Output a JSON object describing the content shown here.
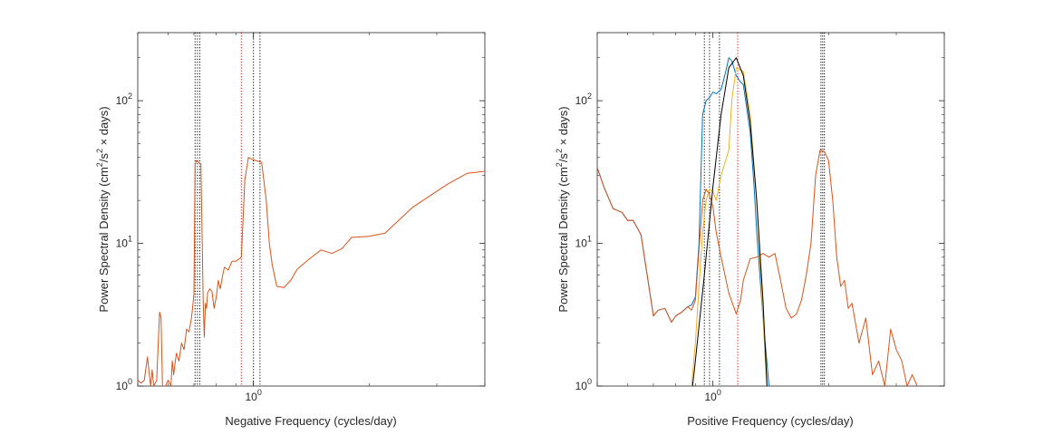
{
  "chart_data": [
    {
      "type": "line",
      "xlabel": "Negative Frequency (cycles/day)",
      "ylabel_parts": [
        "Power Spectral Density (cm",
        "2",
        "/s",
        "2",
        " × days)"
      ],
      "xscale": "log",
      "yscale": "log",
      "xlim": [
        0.5,
        4.0
      ],
      "ylim": [
        1,
        300
      ],
      "xticks": [
        {
          "value": 1,
          "base": "10",
          "exp": "0"
        }
      ],
      "yticks": [
        {
          "value": 1,
          "base": "10",
          "exp": "0"
        },
        {
          "value": 10,
          "base": "10",
          "exp": "1"
        },
        {
          "value": 100,
          "base": "10",
          "exp": "2"
        }
      ],
      "vlines": [
        {
          "x": 0.705,
          "color": "#000000"
        },
        {
          "x": 0.715,
          "color": "#000000"
        },
        {
          "x": 0.725,
          "color": "#000000"
        },
        {
          "x": 0.93,
          "color": "#ff0000"
        },
        {
          "x": 1.0,
          "color": "#000000"
        },
        {
          "x": 1.04,
          "color": "#000000"
        }
      ],
      "series": [
        {
          "color": "#d95319",
          "x": [
            0.5,
            0.51,
            0.52,
            0.53,
            0.54,
            0.545,
            0.55,
            0.56,
            0.57,
            0.575,
            0.58,
            0.59,
            0.6,
            0.61,
            0.615,
            0.62,
            0.63,
            0.64,
            0.65,
            0.66,
            0.67,
            0.68,
            0.69,
            0.7,
            0.705,
            0.71,
            0.72,
            0.73,
            0.74,
            0.745,
            0.75,
            0.755,
            0.76,
            0.77,
            0.78,
            0.79,
            0.8,
            0.81,
            0.82,
            0.83,
            0.84,
            0.86,
            0.88,
            0.9,
            0.93,
            0.95,
            0.97,
            1.0,
            1.05,
            1.08,
            1.1,
            1.12,
            1.15,
            1.2,
            1.25,
            1.3,
            1.4,
            1.5,
            1.6,
            1.7,
            1.8,
            2.0,
            2.2,
            2.6,
            3.2,
            3.6,
            4.0
          ],
          "y": [
            1.1,
            1.05,
            1.1,
            1.6,
            1.0,
            1.3,
            1.0,
            1.1,
            3.3,
            3.0,
            1.0,
            1.0,
            1.1,
            1.0,
            1.5,
            1.2,
            1.7,
            1.5,
            2.0,
            1.8,
            2.5,
            2.4,
            3.0,
            4.4,
            36.0,
            38.0,
            37.0,
            36.0,
            4.0,
            2.2,
            3.8,
            3.5,
            4.5,
            4.8,
            4.6,
            3.5,
            4.2,
            5.5,
            4.8,
            5.8,
            6.8,
            6.5,
            7.5,
            7.5,
            8.0,
            28.0,
            40.0,
            38.5,
            37.0,
            20.0,
            10.0,
            7.0,
            5.0,
            4.9,
            5.5,
            6.6,
            7.8,
            9.0,
            8.5,
            9.2,
            11.0,
            11.2,
            11.8,
            18.0,
            26.0,
            31.0,
            32.0
          ]
        }
      ]
    },
    {
      "type": "line",
      "xlabel": "Positive Frequency (cycles/day)",
      "ylabel_parts": [
        "Power Spectral Density (cm",
        "2",
        "/s",
        "2",
        " × days)"
      ],
      "xscale": "log",
      "yscale": "log",
      "xlim": [
        0.5,
        4.0
      ],
      "ylim": [
        1,
        300
      ],
      "xticks": [
        {
          "value": 1,
          "base": "10",
          "exp": "0"
        }
      ],
      "yticks": [
        {
          "value": 1,
          "base": "10",
          "exp": "0"
        },
        {
          "value": 10,
          "base": "10",
          "exp": "1"
        },
        {
          "value": 100,
          "base": "10",
          "exp": "2"
        }
      ],
      "vlines": [
        {
          "x": 0.95,
          "color": "#000000"
        },
        {
          "x": 0.98,
          "color": "#000000"
        },
        {
          "x": 1.04,
          "color": "#000000"
        },
        {
          "x": 1.16,
          "color": "#ff0000"
        },
        {
          "x": 1.91,
          "color": "#000000"
        },
        {
          "x": 1.93,
          "color": "#000000"
        },
        {
          "x": 1.95,
          "color": "#000000"
        }
      ],
      "series": [
        {
          "color": "#0072bd",
          "x": [
            0.5,
            0.52,
            0.55,
            0.58,
            0.6,
            0.62,
            0.65,
            0.7,
            0.72,
            0.75,
            0.78,
            0.8,
            0.83,
            0.86,
            0.88,
            0.9,
            0.92,
            0.94,
            0.96,
            0.98,
            1.0,
            1.02,
            1.05,
            1.08,
            1.1,
            1.12,
            1.15,
            1.18,
            1.2,
            1.25,
            1.28,
            1.3,
            1.35,
            1.4,
            1.5
          ],
          "y": [
            34,
            25,
            17.5,
            16.5,
            14.5,
            14.5,
            11.5,
            3.1,
            3.4,
            3.5,
            2.8,
            3.1,
            3.3,
            3.6,
            3.7,
            4.2,
            10,
            80,
            100,
            105,
            115,
            112,
            120,
            160,
            200,
            190,
            150,
            135,
            130,
            60,
            25,
            12,
            3,
            1,
            0.5
          ]
        },
        {
          "color": "#d95319",
          "x": [
            0.5,
            0.52,
            0.55,
            0.58,
            0.6,
            0.62,
            0.65,
            0.7,
            0.72,
            0.75,
            0.78,
            0.8,
            0.83,
            0.86,
            0.88,
            0.9,
            0.92,
            0.94,
            0.96,
            0.98,
            1.0,
            1.02,
            1.05,
            1.1,
            1.15,
            1.18,
            1.2,
            1.25,
            1.3,
            1.35,
            1.4,
            1.45,
            1.5,
            1.55,
            1.6,
            1.65,
            1.7,
            1.75,
            1.8,
            1.85,
            1.9,
            1.95,
            2.0,
            2.05,
            2.1,
            2.15,
            2.2,
            2.25,
            2.3,
            2.4,
            2.5,
            2.6,
            2.7,
            2.8,
            2.9,
            3.0,
            3.1,
            3.2,
            3.3,
            3.4
          ],
          "y": [
            34,
            25,
            17.5,
            16.5,
            14.5,
            14.5,
            11.5,
            3.1,
            3.4,
            3.5,
            2.8,
            3.1,
            3.3,
            3.6,
            3.4,
            4.0,
            9,
            20,
            24,
            22,
            18,
            12,
            8,
            4.5,
            3.2,
            4.0,
            5.5,
            7.8,
            8.0,
            8.5,
            8.0,
            8.5,
            5.5,
            3.5,
            3.0,
            3.2,
            4.0,
            6.0,
            10,
            30,
            45,
            44,
            38,
            20,
            8,
            5.0,
            5.5,
            3.5,
            3.8,
            2.0,
            3.0,
            1.2,
            1.5,
            1.0,
            2.5,
            1.8,
            1.5,
            1.0,
            1.2,
            1.0
          ]
        },
        {
          "color": "#edb120",
          "x": [
            0.85,
            0.88,
            0.9,
            0.92,
            0.94,
            0.96,
            0.98,
            1.0,
            1.02,
            1.05,
            1.1,
            1.12,
            1.15,
            1.2,
            1.25,
            1.3,
            1.35,
            1.4
          ],
          "y": [
            0.5,
            1.0,
            2.0,
            5,
            12,
            20,
            24,
            23,
            20,
            30,
            45,
            100,
            170,
            160,
            80,
            20,
            3,
            0.5
          ]
        },
        {
          "color": "#000000",
          "x": [
            0.86,
            0.9,
            0.95,
            1.0,
            1.05,
            1.1,
            1.15,
            1.2,
            1.25,
            1.3,
            1.35,
            1.4
          ],
          "y": [
            0.5,
            1.5,
            6,
            25,
            80,
            170,
            200,
            150,
            70,
            20,
            4,
            0.5
          ]
        }
      ]
    }
  ]
}
